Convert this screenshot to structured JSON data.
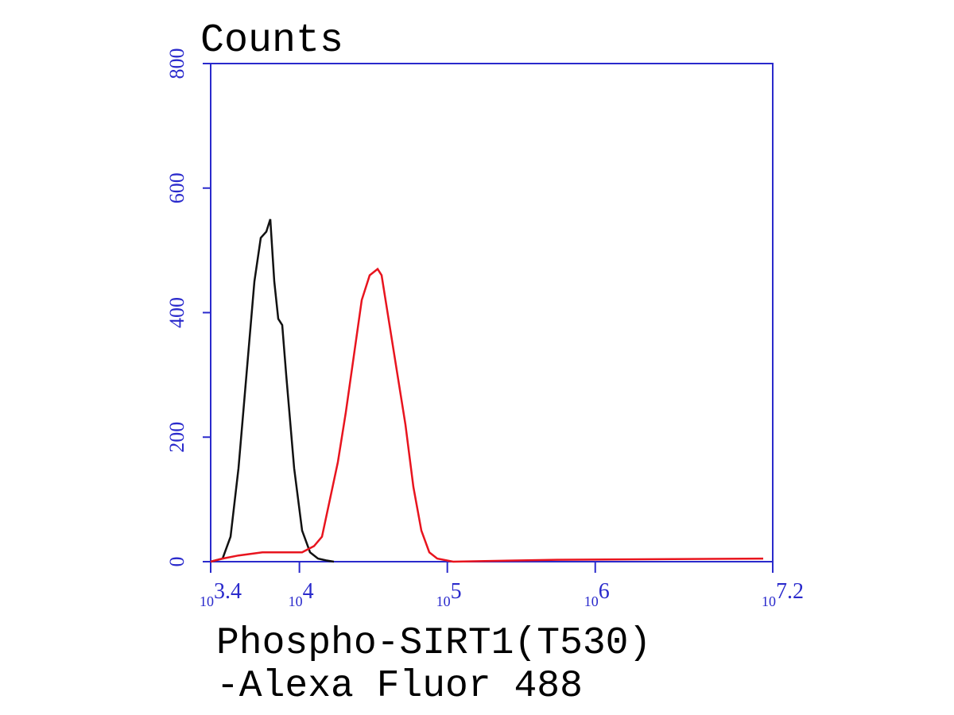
{
  "chart_data": {
    "type": "line",
    "title": "Counts",
    "xlabel": [
      "Phospho-SIRT1(T530)",
      "-Alexa Fluor 488"
    ],
    "xscale": "log",
    "xlim": [
      2511.886,
      15848931.9
    ],
    "xticks": [
      {
        "value": 2511.886,
        "label": "10",
        "exponent": "3.4"
      },
      {
        "value": 10000,
        "label": "10",
        "exponent": "4"
      },
      {
        "value": 100000,
        "label": "10",
        "exponent": "5"
      },
      {
        "value": 1000000,
        "label": "10",
        "exponent": "6"
      },
      {
        "value": 15848931.9,
        "label": "10",
        "exponent": "7.2"
      }
    ],
    "ylim": [
      0,
      800
    ],
    "yticks": [
      0,
      200,
      400,
      600,
      800
    ],
    "axis_color": "#2a2acc",
    "series": [
      {
        "color": "#111111",
        "x": [
          2512,
          3025,
          3424,
          3875,
          4385,
          4962,
          5478,
          5975,
          6356,
          6761,
          7193,
          7651,
          8139,
          9213,
          10426,
          11800,
          13354,
          15115,
          17106
        ],
        "values": [
          0,
          5,
          40,
          150,
          300,
          450,
          520,
          530,
          550,
          450,
          390,
          380,
          300,
          150,
          50,
          15,
          5,
          2,
          0
        ]
      },
      {
        "color": "#e8141e",
        "x": [
          2512,
          3025,
          3875,
          5616,
          8139,
          10426,
          12556,
          14207,
          16083,
          18197,
          20596,
          23314,
          26384,
          29854,
          33796,
          35940,
          40680,
          46030,
          52115,
          58970,
          66750,
          75530,
          85500,
          109500,
          547100,
          13670000
        ],
        "values": [
          0,
          5,
          10,
          15,
          15,
          15,
          25,
          40,
          100,
          160,
          240,
          330,
          420,
          460,
          470,
          460,
          380,
          300,
          220,
          120,
          50,
          15,
          5,
          0,
          3,
          5
        ]
      }
    ]
  }
}
